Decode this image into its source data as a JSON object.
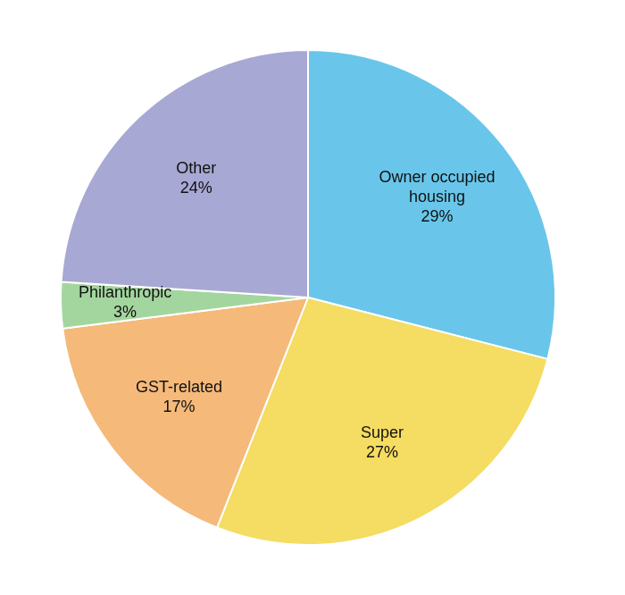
{
  "chart_data": {
    "type": "pie",
    "categories": [
      "Owner occupied housing",
      "Super",
      "GST-related",
      "Philanthropic",
      "Other"
    ],
    "values": [
      29,
      27,
      17,
      3,
      24
    ],
    "value_labels": [
      "29%",
      "27%",
      "17%",
      "3%",
      "24%"
    ],
    "colors": [
      "#69c6ea",
      "#f5dc62",
      "#f5b97a",
      "#a3d69e",
      "#a8a8d4"
    ],
    "data_labels": true
  }
}
